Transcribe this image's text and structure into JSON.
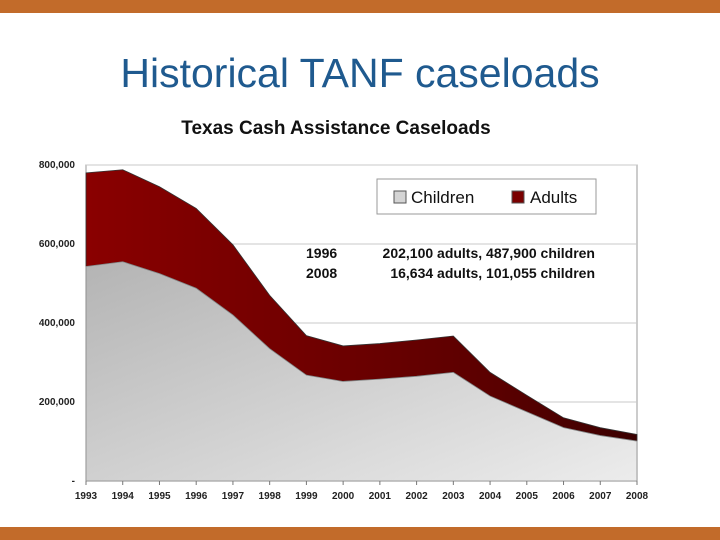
{
  "slide": {
    "title": "Historical TANF caseloads",
    "accent_color": "#c26b2a",
    "title_color": "#1f5a8f"
  },
  "chart_data": {
    "type": "area",
    "title": "Texas Cash Assistance Caseloads",
    "xlabel": "",
    "ylabel": "",
    "x": [
      "1993",
      "1994",
      "1995",
      "1996",
      "1997",
      "1998",
      "1999",
      "2000",
      "2001",
      "2002",
      "2003",
      "2004",
      "2005",
      "2006",
      "2007",
      "2008"
    ],
    "stacked": true,
    "ylim": [
      0,
      800000
    ],
    "yticks": [
      0,
      200000,
      400000,
      600000,
      800000
    ],
    "ytick_labels": [
      "-",
      "200,000",
      "400,000",
      "600,000",
      "800,000"
    ],
    "grid": true,
    "legend_position": "top-right",
    "series": [
      {
        "name": "Children",
        "color": "#d4d4d4",
        "values": [
          543000,
          555000,
          525000,
          487900,
          420000,
          335000,
          268000,
          252000,
          258000,
          265000,
          275000,
          215000,
          175000,
          135000,
          115000,
          101055
        ]
      },
      {
        "name": "Adults",
        "color": "#7a0000",
        "values": [
          237000,
          233000,
          220000,
          202100,
          178000,
          135000,
          100000,
          90000,
          90000,
          92000,
          92000,
          60000,
          42000,
          25000,
          20000,
          16634
        ]
      }
    ],
    "annotations": [
      {
        "year": "1996",
        "text": "202,100 adults, 487,900 children"
      },
      {
        "year": "2008",
        "text": "16,634 adults, 101,055 children"
      }
    ]
  }
}
